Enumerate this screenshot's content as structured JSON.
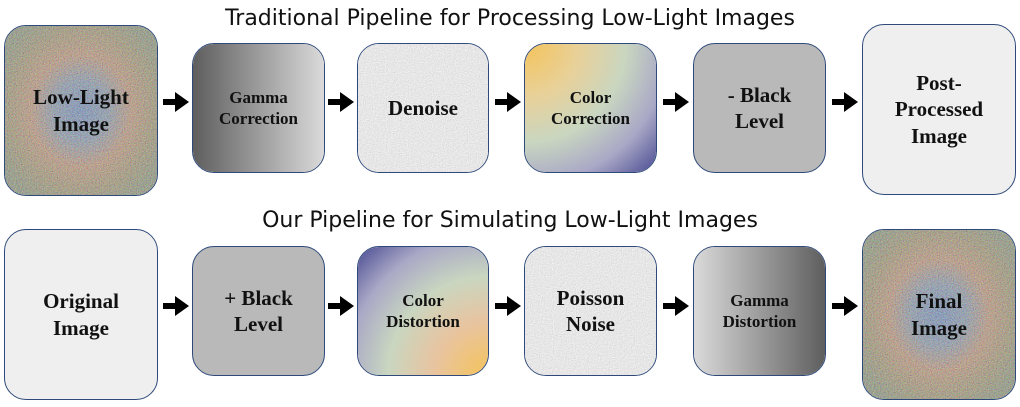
{
  "top_row": {
    "title": "Traditional Pipeline for Processing Low-Light Images",
    "steps": [
      {
        "label_1": "Low-Light",
        "label_2": "Image"
      },
      {
        "label_1": "Gamma",
        "label_2": "Correction"
      },
      {
        "label_1": "Denoise"
      },
      {
        "label_1": "Color",
        "label_2": "Correction"
      },
      {
        "label_1": "- Black",
        "label_2": "Level"
      },
      {
        "label_1": "Post-",
        "label_2": "Processed",
        "label_3": "Image"
      }
    ]
  },
  "bottom_row": {
    "title": "Our Pipeline for Simulating Low-Light Images",
    "steps": [
      {
        "label_1": "Original",
        "label_2": "Image"
      },
      {
        "label_1": "+ Black",
        "label_2": "Level"
      },
      {
        "label_1": "Color",
        "label_2": "Distortion"
      },
      {
        "label_1": "Poisson",
        "label_2": "Noise"
      },
      {
        "label_1": "Gamma",
        "label_2": "Distortion"
      },
      {
        "label_1": "Final",
        "label_2": "Image"
      }
    ]
  },
  "colors": {
    "box_border": "#2f4a7a",
    "arrow": "#000000",
    "box_gray": "#b9b9b9",
    "box_light": "#efefef"
  }
}
